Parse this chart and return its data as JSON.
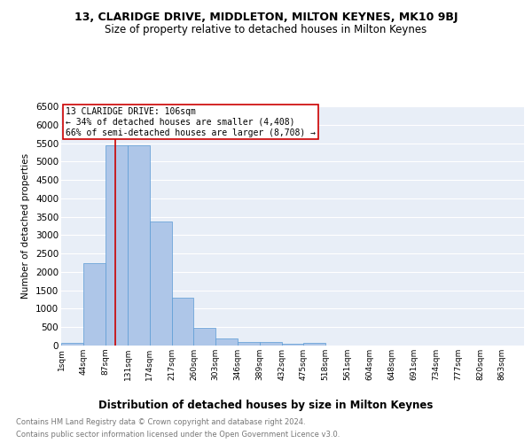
{
  "title": "13, CLARIDGE DRIVE, MIDDLETON, MILTON KEYNES, MK10 9BJ",
  "subtitle": "Size of property relative to detached houses in Milton Keynes",
  "xlabel": "Distribution of detached houses by size in Milton Keynes",
  "ylabel": "Number of detached properties",
  "footnote1": "Contains HM Land Registry data © Crown copyright and database right 2024.",
  "footnote2": "Contains public sector information licensed under the Open Government Licence v3.0.",
  "bin_edges": [
    1,
    44,
    87,
    131,
    174,
    217,
    260,
    303,
    346,
    389,
    432,
    475,
    518,
    561,
    604,
    648,
    691,
    734,
    777,
    820,
    863
  ],
  "bar_heights": [
    70,
    2250,
    5450,
    5450,
    3380,
    1300,
    480,
    190,
    85,
    85,
    60,
    65,
    10,
    5,
    3,
    2,
    2,
    1,
    1,
    1
  ],
  "bar_color": "#aec6e8",
  "bar_edge_color": "#5b9bd5",
  "red_line_x": 106,
  "annotation_text": "13 CLARIDGE DRIVE: 106sqm\n← 34% of detached houses are smaller (4,408)\n66% of semi-detached houses are larger (8,708) →",
  "annotation_box_color": "#ffffff",
  "annotation_border_color": "#cc0000",
  "ylim": [
    0,
    6500
  ],
  "yticks": [
    0,
    500,
    1000,
    1500,
    2000,
    2500,
    3000,
    3500,
    4000,
    4500,
    5000,
    5500,
    6000,
    6500
  ],
  "background_color": "#e8eef7",
  "grid_color": "#ffffff",
  "title_fontsize": 9,
  "subtitle_fontsize": 8.5,
  "tick_labels": [
    "1sqm",
    "44sqm",
    "87sqm",
    "131sqm",
    "174sqm",
    "217sqm",
    "260sqm",
    "303sqm",
    "346sqm",
    "389sqm",
    "432sqm",
    "475sqm",
    "518sqm",
    "561sqm",
    "604sqm",
    "648sqm",
    "691sqm",
    "734sqm",
    "777sqm",
    "820sqm",
    "863sqm"
  ]
}
